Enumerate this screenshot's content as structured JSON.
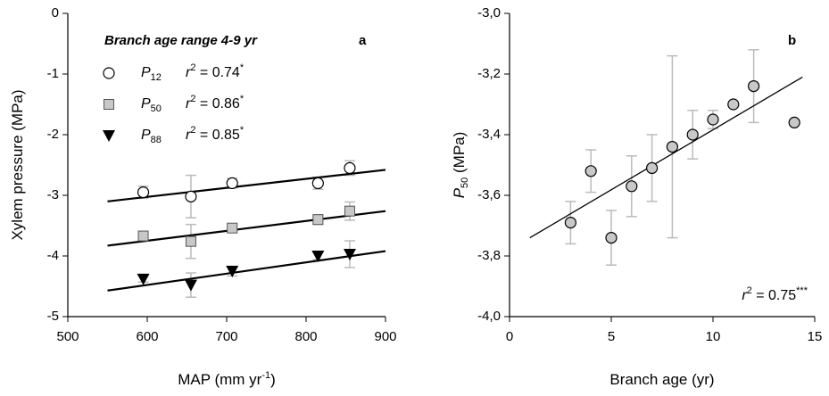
{
  "chart_data": [
    {
      "type": "scatter",
      "panel_label": "a",
      "annotation": "Branch age range 4-9 yr",
      "x_label": "MAP (mm yr",
      "x_label_sup": "-1",
      "x_label_end": ")",
      "y_label": "Xylem pressure (MPa)",
      "xlim": [
        500,
        900
      ],
      "xticks": [
        500,
        600,
        700,
        800,
        900
      ],
      "ylim": [
        -5,
        0
      ],
      "yticks": [
        -5,
        -4,
        -3,
        -2,
        -1,
        0
      ],
      "series": [
        {
          "name": "P",
          "name_subscript": "12",
          "r2_label": "r",
          "r2_sup": "2",
          "r2_value": " = 0.74",
          "significance": "*",
          "marker": "circle",
          "color": "#ffffff",
          "x": [
            595,
            655,
            707,
            815,
            855
          ],
          "values": [
            -2.95,
            -3.02,
            -2.8,
            -2.8,
            -2.55
          ],
          "errors": [
            0.1,
            0.35,
            0.08,
            0.1,
            0.12
          ],
          "fit": {
            "x": [
              550,
              900
            ],
            "y": [
              -3.1,
              -2.58
            ]
          }
        },
        {
          "name": "P",
          "name_subscript": "50",
          "r2_label": "r",
          "r2_sup": "2",
          "r2_value": " = 0.86",
          "significance": "*",
          "marker": "square",
          "color": "#c8c8c8",
          "x": [
            595,
            655,
            707,
            815,
            855
          ],
          "values": [
            -3.67,
            -3.76,
            -3.54,
            -3.4,
            -3.26
          ],
          "errors": [
            0.06,
            0.28,
            0.06,
            0.08,
            0.15
          ],
          "fit": {
            "x": [
              550,
              900
            ],
            "y": [
              -3.83,
              -3.26
            ]
          }
        },
        {
          "name": "P",
          "name_subscript": "88",
          "r2_label": "r",
          "r2_sup": "2",
          "r2_value": " = 0.85",
          "significance": "*",
          "marker": "triangle-down",
          "color": "#000000",
          "x": [
            595,
            655,
            707,
            815,
            855
          ],
          "values": [
            -4.38,
            -4.48,
            -4.25,
            -4.0,
            -3.97
          ],
          "errors": [
            0.05,
            0.2,
            0.08,
            0.06,
            0.22
          ],
          "fit": {
            "x": [
              550,
              900
            ],
            "y": [
              -4.57,
              -3.92
            ]
          }
        }
      ]
    },
    {
      "type": "scatter",
      "panel_label": "b",
      "annotation_r": "r",
      "annotation_sup": "2",
      "annotation_value": " = 0.75",
      "annotation_significance": "***",
      "x_label": "Branch age (yr)",
      "y_label": "P",
      "y_label_subscript": "50",
      "y_label_end": " (MPa)",
      "xlim": [
        0,
        15
      ],
      "xticks": [
        0,
        5,
        10,
        15
      ],
      "ylim": [
        -4,
        -3
      ],
      "yticks": [
        {
          "value": -4,
          "label": "-4,0"
        },
        {
          "value": -3.8,
          "label": "-3,8"
        },
        {
          "value": -3.6,
          "label": "-3,6"
        },
        {
          "value": -3.4,
          "label": "-3,4"
        },
        {
          "value": -3.2,
          "label": "-3,2"
        },
        {
          "value": -3,
          "label": "-3,0"
        }
      ],
      "series": [
        {
          "marker": "circle",
          "color": "#c8c8c8",
          "x": [
            3,
            4,
            5,
            6,
            7,
            8,
            9,
            10,
            11,
            12,
            14
          ],
          "values": [
            -3.69,
            -3.52,
            -3.74,
            -3.57,
            -3.51,
            -3.44,
            -3.4,
            -3.35,
            -3.3,
            -3.24,
            -3.36
          ],
          "errors": [
            0.07,
            0.07,
            0.09,
            0.1,
            0.11,
            0.3,
            0.08,
            0.03,
            null,
            0.12,
            null
          ],
          "fit": {
            "x": [
              1,
              14.4
            ],
            "y": [
              -3.74,
              -3.21
            ]
          }
        }
      ]
    }
  ]
}
